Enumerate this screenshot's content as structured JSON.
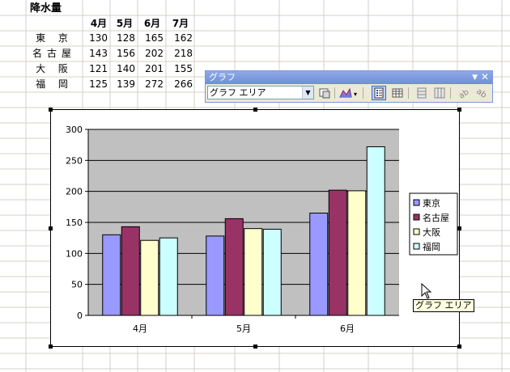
{
  "sheet": {
    "title": "降水量",
    "month_headers": [
      "4月",
      "5月",
      "6月",
      "7月"
    ],
    "rows": [
      {
        "label": "東 京",
        "values": [
          "130",
          "128",
          "165",
          "162"
        ]
      },
      {
        "label": "名古屋",
        "values": [
          "143",
          "156",
          "202",
          "218"
        ]
      },
      {
        "label": "大 阪",
        "values": [
          "121",
          "140",
          "201",
          "155"
        ]
      },
      {
        "label": "福 岡",
        "values": [
          "125",
          "139",
          "272",
          "266"
        ]
      }
    ]
  },
  "toolbar": {
    "title": "グラフ",
    "selected_object": "グラフ エリア",
    "icons": [
      "format-selected-icon",
      "chart-type-icon",
      "legend-icon",
      "data-table-icon",
      "by-row-icon",
      "by-column-icon",
      "angle-text-down-icon",
      "angle-text-up-icon"
    ]
  },
  "tooltip": "グラフ エリア",
  "colors": {
    "plot_area": "#c0c0c0",
    "series": [
      "#9999ff",
      "#993366",
      "#ffffcc",
      "#ccffff"
    ]
  },
  "chart_data": {
    "type": "bar",
    "categories": [
      "4月",
      "5月",
      "6月"
    ],
    "series": [
      {
        "name": "東京",
        "values": [
          130,
          128,
          165
        ]
      },
      {
        "name": "名古屋",
        "values": [
          143,
          156,
          202
        ]
      },
      {
        "name": "大阪",
        "values": [
          121,
          140,
          201
        ]
      },
      {
        "name": "福岡",
        "values": [
          125,
          139,
          272
        ]
      }
    ],
    "yticks": [
      "0",
      "50",
      "100",
      "150",
      "200",
      "250",
      "300"
    ],
    "ylim": [
      0,
      300
    ],
    "grid": true,
    "legend": "right"
  }
}
